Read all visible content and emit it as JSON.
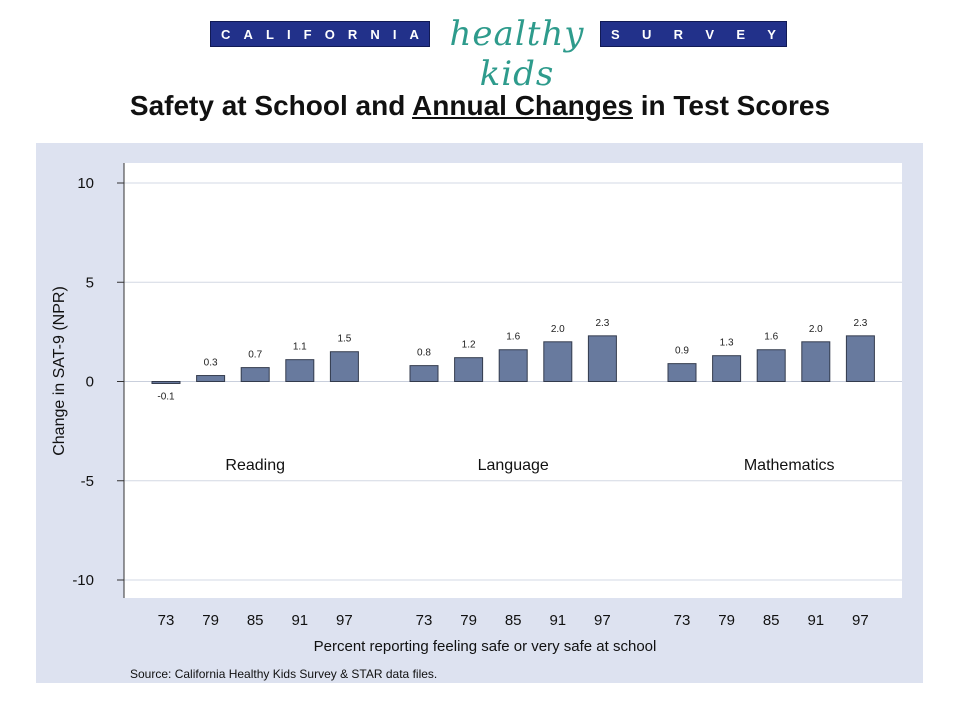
{
  "banner": {
    "left_letters": [
      "C",
      "A",
      "L",
      "I",
      "F",
      "O",
      "R",
      "N",
      "I",
      "A"
    ],
    "script_text": "healthy kids",
    "right_letters": [
      "S",
      "U",
      "R",
      "V",
      "E",
      "Y"
    ],
    "colors": {
      "bar": "#22318a",
      "script": "#2e9b8c"
    }
  },
  "title": {
    "before": "Safety at School and ",
    "underlined": "Annual Changes",
    "after": " in Test Scores"
  },
  "source_note": "Source:  California Healthy Kids Survey & STAR data files.",
  "chart_data": {
    "type": "bar",
    "ylabel": "Change in SAT-9 (NPR)",
    "xlabel": "Percent reporting feeling safe or very safe at school",
    "ylim": [
      -10,
      10
    ],
    "yticks": [
      10,
      5,
      0,
      -5,
      -10
    ],
    "grid": true,
    "bar_color": "#687a9e",
    "groups": [
      {
        "name": "Reading",
        "categories": [
          "73",
          "79",
          "85",
          "91",
          "97"
        ],
        "values": [
          -0.1,
          0.3,
          0.7,
          1.1,
          1.5
        ],
        "labels": [
          "-0.1",
          "0.3",
          "0.7",
          "1.1",
          "1.5"
        ]
      },
      {
        "name": "Language",
        "categories": [
          "73",
          "79",
          "85",
          "91",
          "97"
        ],
        "values": [
          0.8,
          1.2,
          1.6,
          2.0,
          2.3
        ],
        "labels": [
          "0.8",
          "1.2",
          "1.6",
          "2.0",
          "2.3"
        ]
      },
      {
        "name": "Mathematics",
        "categories": [
          "73",
          "79",
          "85",
          "91",
          "97"
        ],
        "values": [
          0.9,
          1.3,
          1.6,
          2.0,
          2.3
        ],
        "labels": [
          "0.9",
          "1.3",
          "1.6",
          "2.0",
          "2.3"
        ]
      }
    ]
  }
}
